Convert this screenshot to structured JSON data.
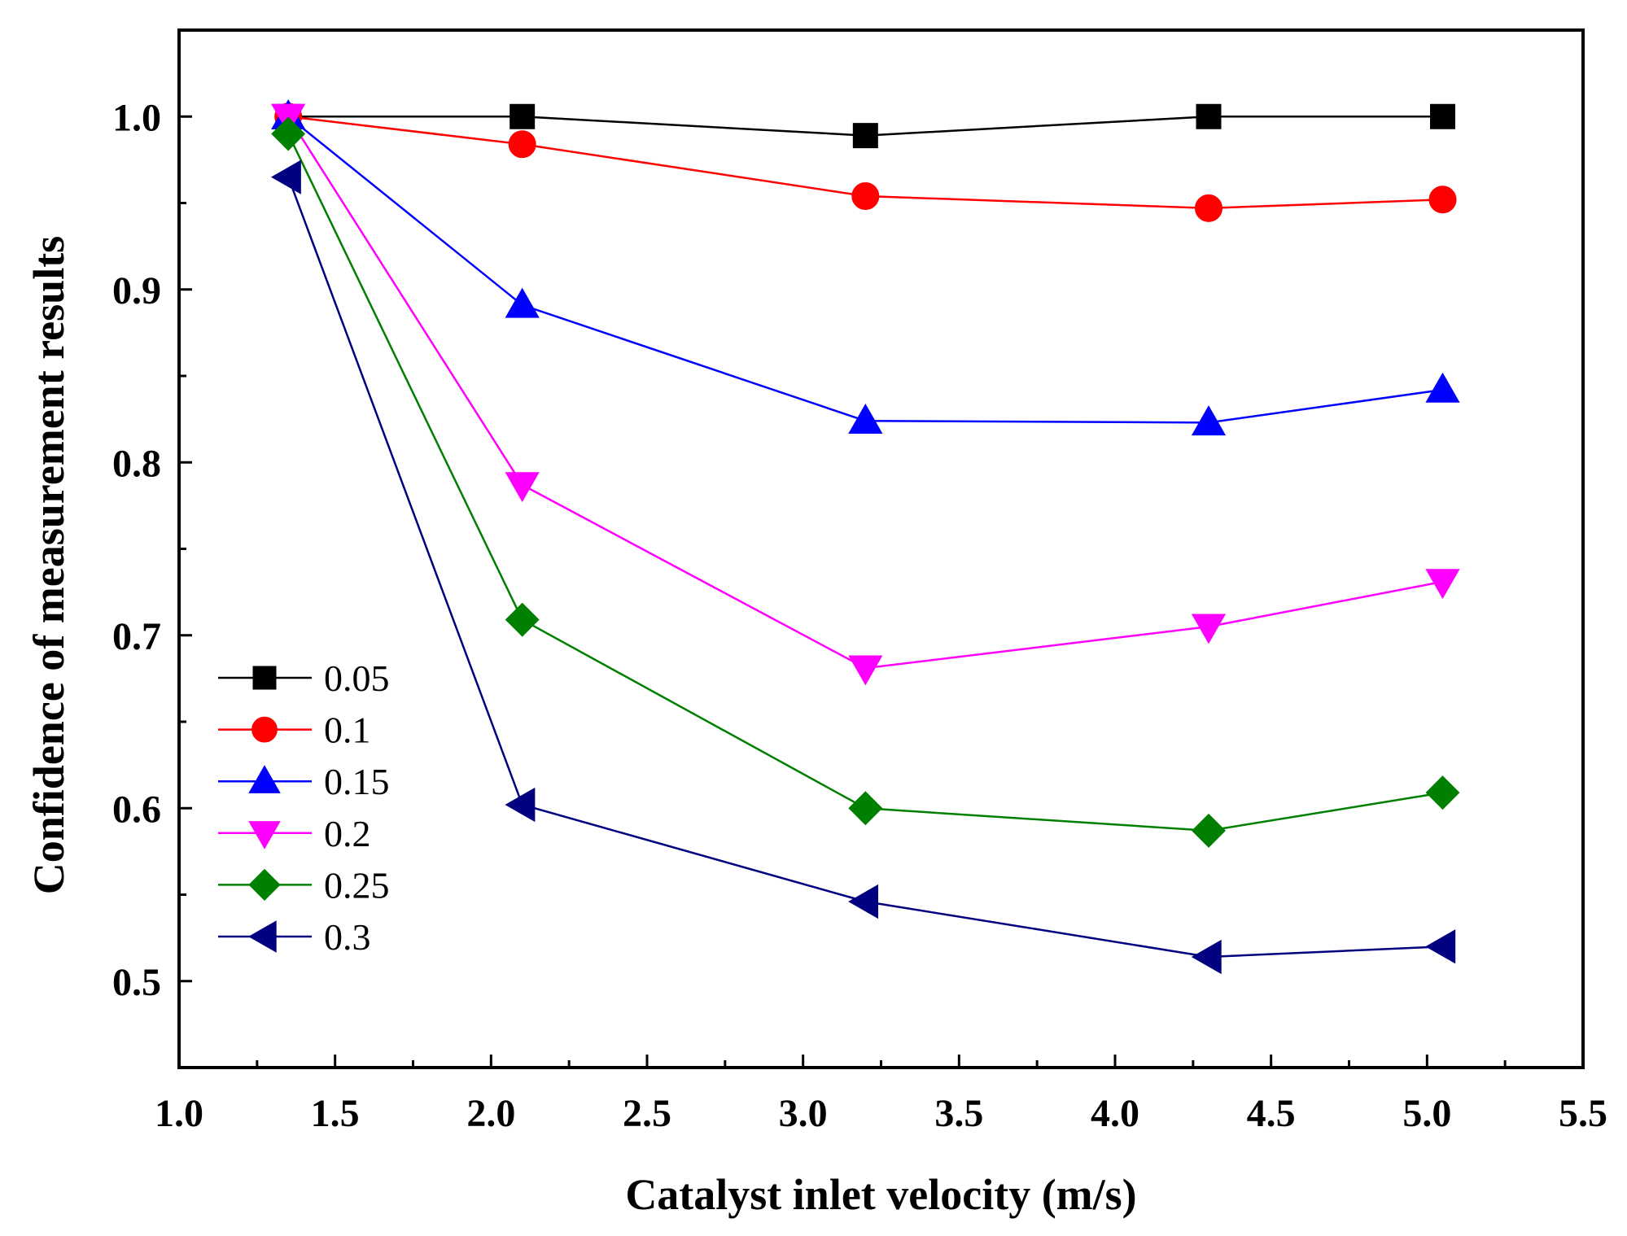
{
  "chart_data": {
    "type": "line",
    "title": "",
    "xlabel": "Catalyst inlet velocity (m/s)",
    "ylabel": "Confidence of measurement results",
    "xlim": [
      1.0,
      5.5
    ],
    "ylim": [
      0.45,
      1.05
    ],
    "x_ticks": [
      "1.0",
      "1.5",
      "2.0",
      "2.5",
      "3.0",
      "3.5",
      "4.0",
      "4.5",
      "5.0",
      "5.5"
    ],
    "x_tick_values": [
      1.0,
      1.5,
      2.0,
      2.5,
      3.0,
      3.5,
      4.0,
      4.5,
      5.0,
      5.5
    ],
    "y_ticks": [
      "0.5",
      "0.6",
      "0.7",
      "0.8",
      "0.9",
      "1.0"
    ],
    "y_tick_values": [
      0.5,
      0.6,
      0.7,
      0.8,
      0.9,
      1.0
    ],
    "grid": false,
    "legend_position": "bottom-left",
    "x": [
      1.35,
      2.1,
      3.2,
      4.3,
      5.05
    ],
    "series": [
      {
        "name": "0.05",
        "values": [
          1.0,
          1.0,
          0.989,
          1.0,
          1.0
        ],
        "color": "#000000",
        "marker": "square"
      },
      {
        "name": "0.1",
        "values": [
          1.0,
          0.984,
          0.954,
          0.947,
          0.952
        ],
        "color": "#ff0000",
        "marker": "circle"
      },
      {
        "name": "0.15",
        "values": [
          1.0,
          0.891,
          0.824,
          0.823,
          0.842
        ],
        "color": "#0000ff",
        "marker": "triangle-up"
      },
      {
        "name": "0.2",
        "values": [
          1.0,
          0.787,
          0.681,
          0.705,
          0.731
        ],
        "color": "#ff00ff",
        "marker": "triangle-down"
      },
      {
        "name": "0.25",
        "values": [
          0.99,
          0.709,
          0.6,
          0.587,
          0.609
        ],
        "color": "#008000",
        "marker": "diamond"
      },
      {
        "name": "0.3",
        "values": [
          0.965,
          0.602,
          0.546,
          0.514,
          0.52
        ],
        "color": "#000080",
        "marker": "triangle-left"
      }
    ]
  }
}
